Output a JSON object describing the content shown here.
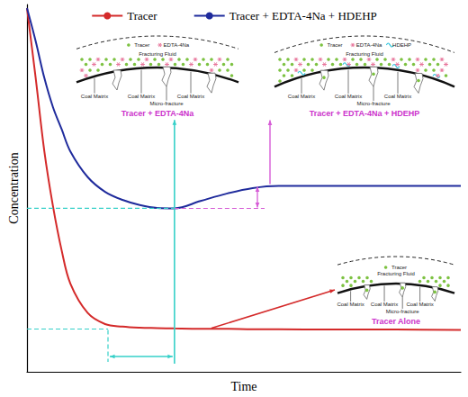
{
  "chart_data": {
    "type": "line",
    "x_label": "Time",
    "y_label": "Concentration",
    "xlim": [
      0,
      100
    ],
    "ylim": [
      0,
      100
    ],
    "tick_labels": false,
    "grid": false,
    "legend": "top",
    "x": [
      0,
      2,
      4,
      6,
      8,
      10,
      14,
      18,
      22,
      26,
      30,
      34,
      40,
      46,
      52,
      58,
      70,
      85,
      100
    ],
    "series": [
      {
        "name": "Tracer",
        "color": "#d42a2a",
        "values": [
          99,
          80,
          60,
          45,
          33,
          24,
          16,
          13,
          12.3,
          12,
          11.9,
          11.8,
          11.7,
          11.7,
          11.6,
          11.6,
          11.5,
          11.5,
          11.4
        ]
      },
      {
        "name": "Tracer + EDTA-4Na + HDEHP",
        "color": "#1f2b9c",
        "values": [
          99,
          90,
          80,
          72,
          66,
          60,
          53,
          49,
          46.8,
          45.4,
          44.6,
          44.5,
          46.5,
          48.5,
          50,
          50.6,
          50.6,
          50.6,
          50.6
        ]
      }
    ],
    "annotations": {
      "insets": [
        {
          "caption": "Tracer + EDTA-4Na",
          "legend": [
            "Tracer",
            "EDTA-4Na"
          ],
          "fluid": "Fracturing Fluid",
          "matrix": "Coal Matrix",
          "fracture": "Micro-fracture"
        },
        {
          "caption": "Tracer + EDTA-4Na + HDEHP",
          "legend": [
            "Tracer",
            "EDTA-4Na",
            "HDEHP"
          ],
          "fluid": "Fracturing Fluid",
          "matrix": "Coal Matrix",
          "fracture": "Micro-fracture"
        },
        {
          "caption": "Tracer Alone",
          "legend": [
            "Tracer"
          ],
          "fluid": "Fracturing Fluid",
          "matrix": "Coal Matrix",
          "fracture": "Micro-fracture"
        }
      ]
    }
  }
}
